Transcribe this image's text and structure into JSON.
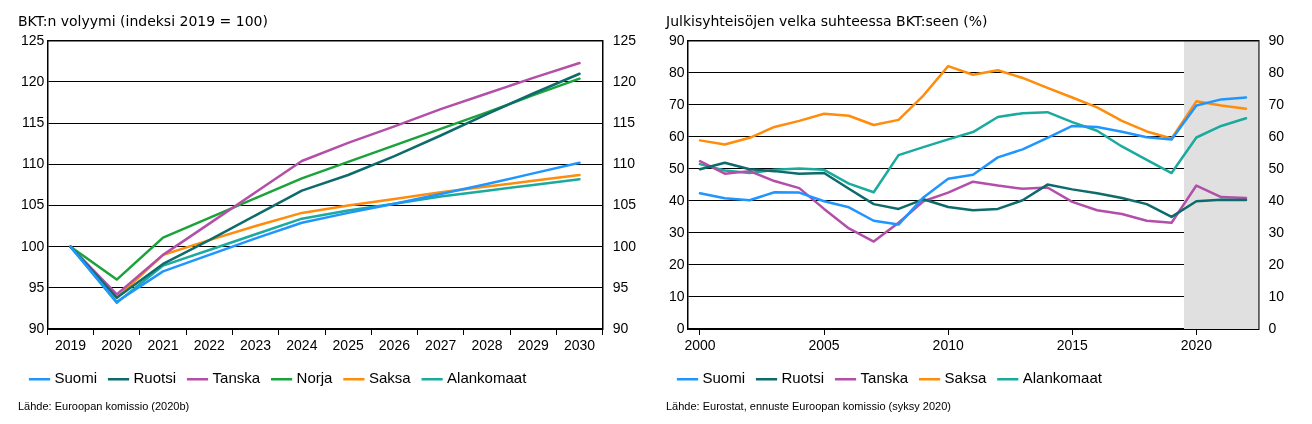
{
  "chart_data": [
    {
      "type": "line",
      "title": "BKT:n volyymi (indeksi 2019 = 100)",
      "categories": [
        "2019",
        "2020",
        "2021",
        "2022",
        "2023",
        "2024",
        "2025",
        "2026",
        "2027",
        "2028",
        "2029",
        "2030"
      ],
      "series": [
        {
          "name": "Suomi",
          "color": "#1f96ff",
          "values": [
            100,
            93.3,
            97.0,
            99.0,
            101.0,
            102.9,
            104.1,
            105.2,
            106.4,
            107.6,
            108.9,
            110.2
          ]
        },
        {
          "name": "Ruotsi",
          "color": "#0e6b6b",
          "values": [
            100,
            93.8,
            97.9,
            100.8,
            103.8,
            106.8,
            108.7,
            111.0,
            113.5,
            116.1,
            118.6,
            121.0
          ]
        },
        {
          "name": "Tanska",
          "color": "#b34fa8",
          "values": [
            100,
            94.2,
            99.0,
            102.8,
            106.6,
            110.4,
            112.6,
            114.6,
            116.7,
            118.6,
            120.5,
            122.3
          ]
        },
        {
          "name": "Norja",
          "color": "#1aa33a",
          "values": [
            100,
            96.0,
            101.1,
            103.5,
            105.9,
            108.3,
            110.3,
            112.3,
            114.3,
            116.3,
            118.4,
            120.4
          ]
        },
        {
          "name": "Saksa",
          "color": "#ff8c0a",
          "values": [
            100,
            93.8,
            99.0,
            100.8,
            102.5,
            104.1,
            105.0,
            105.8,
            106.6,
            107.3,
            108.0,
            108.7
          ]
        },
        {
          "name": "Alankomaat",
          "color": "#1aab9e",
          "values": [
            100,
            93.2,
            97.7,
            99.6,
            101.5,
            103.4,
            104.4,
            105.2,
            106.1,
            106.8,
            107.5,
            108.2
          ]
        }
      ],
      "ylim": [
        90,
        125
      ],
      "yticks": [
        90,
        95,
        100,
        105,
        110,
        115,
        120,
        125
      ],
      "y2lim": [
        90,
        125
      ],
      "y2ticks": [
        90,
        95,
        100,
        105,
        110,
        115,
        120,
        125
      ],
      "grid": "y",
      "legend": "bottom",
      "marker": "none",
      "line_style": "solid",
      "annotations": [
        "Lähde: Euroopan komissio (2020b)"
      ]
    },
    {
      "type": "line",
      "title": "Julkisyhteisöjen velka suhteessa BKT:seen (%)",
      "x": [
        2000,
        2001,
        2002,
        2003,
        2004,
        2005,
        2006,
        2007,
        2008,
        2009,
        2010,
        2011,
        2012,
        2013,
        2014,
        2015,
        2016,
        2017,
        2018,
        2019,
        2020,
        2021,
        2022
      ],
      "series": [
        {
          "name": "Suomi",
          "color": "#1f96ff",
          "values": [
            42.4,
            40.8,
            40.2,
            42.7,
            42.6,
            39.9,
            38.0,
            33.8,
            32.6,
            41.1,
            46.9,
            48.2,
            53.6,
            56.1,
            59.7,
            63.4,
            63.1,
            61.6,
            59.9,
            59.2,
            69.8,
            71.7,
            72.3
          ]
        },
        {
          "name": "Ruotsi",
          "color": "#0e6b6b",
          "values": [
            49.9,
            51.9,
            49.9,
            49.3,
            48.5,
            48.7,
            43.8,
            39.0,
            37.5,
            40.5,
            38.1,
            37.1,
            37.5,
            40.2,
            45.1,
            43.6,
            42.4,
            40.9,
            39.0,
            35.0,
            39.9,
            40.4,
            40.3
          ]
        },
        {
          "name": "Tanska",
          "color": "#b34fa8",
          "values": [
            52.4,
            48.5,
            49.3,
            46.2,
            44.0,
            37.5,
            31.4,
            27.3,
            33.2,
            39.9,
            42.6,
            46.0,
            44.8,
            43.8,
            44.2,
            39.7,
            37.1,
            35.9,
            33.8,
            33.2,
            44.8,
            41.2,
            40.9
          ]
        },
        {
          "name": "Saksa",
          "color": "#ff8c0a",
          "values": [
            58.9,
            57.6,
            59.7,
            63.1,
            65.0,
            67.2,
            66.6,
            63.7,
            65.3,
            72.9,
            82.1,
            79.4,
            80.8,
            78.4,
            75.3,
            72.3,
            69.2,
            65.0,
            61.7,
            59.5,
            71.1,
            69.8,
            68.8
          ]
        },
        {
          "name": "Alankomaat",
          "color": "#1aab9e",
          "values": [
            51.5,
            49.5,
            48.7,
            49.7,
            50.1,
            49.7,
            45.4,
            42.7,
            54.3,
            56.8,
            59.2,
            61.5,
            66.2,
            67.4,
            67.7,
            64.6,
            61.9,
            57.0,
            52.8,
            48.7,
            59.8,
            63.4,
            65.8
          ]
        }
      ],
      "xlim": [
        1999.5,
        2022.5
      ],
      "xticks": [
        2000,
        2005,
        2010,
        2015,
        2020
      ],
      "ylim": [
        0,
        90
      ],
      "yticks": [
        0,
        10,
        20,
        30,
        40,
        50,
        60,
        70,
        80,
        90
      ],
      "y2lim": [
        0,
        90
      ],
      "y2ticks": [
        0,
        10,
        20,
        30,
        40,
        50,
        60,
        70,
        80,
        90
      ],
      "bands": [
        {
          "axis": "x",
          "from": 2019.5,
          "to": 2022.5,
          "color": "#e0e0e0"
        }
      ],
      "grid": "y",
      "legend": "bottom",
      "marker": "none",
      "line_style": "solid",
      "annotations": [
        "Lähde: Eurostat, ennuste Euroopan komissio (syksy 2020)"
      ]
    }
  ]
}
